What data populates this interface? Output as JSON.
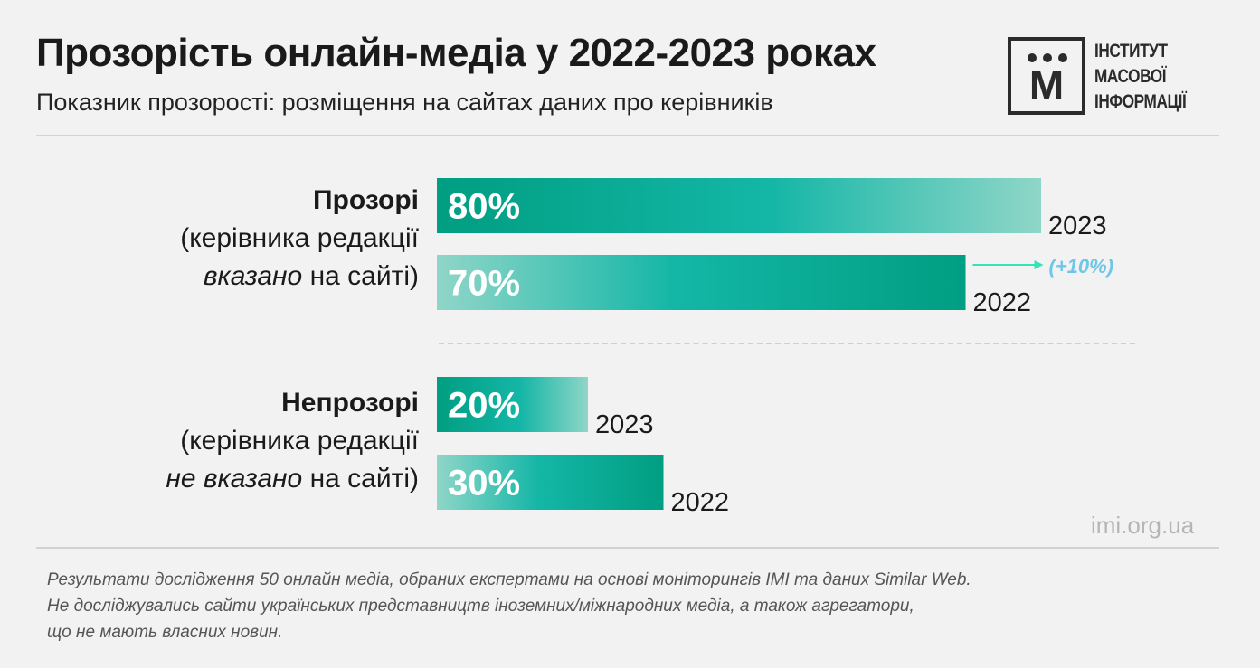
{
  "title": "Прозорість онлайн-медіа у 2022-2023 роках",
  "subtitle": "Показник прозорості: розміщення на сайтах даних про керівників",
  "logo": {
    "lines": [
      "ІНСТИТУТ",
      "МАСОВОЇ",
      "ІНФОРМАЦІЇ"
    ],
    "mark": "М",
    "color": "#2b2b2b"
  },
  "groups": [
    {
      "title": "Прозорі",
      "line1": "(керівника редакції",
      "em": "вказано",
      "rest": " на сайті)"
    },
    {
      "title": "Непрозорі",
      "line1": "(керівника редакції",
      "em": "не вказано",
      "rest": " на сайті)"
    }
  ],
  "site": "imi.org.ua",
  "footnote": [
    "Результати дослідження 50 онлайн медіа, обраних експертами на основі моніторингів IMI та даних Similar Web.",
    "Не досліджувались сайти українських представництв іноземних/міжнародних медіа, а також агрегатори,",
    "що не мають власних новин."
  ],
  "colors": {
    "teal_dark": "#009e82",
    "teal_mid": "#14b6a6",
    "teal_light": "#84d3c4",
    "arrow": "#34e3b6",
    "change_text": "#6ec7e6"
  },
  "chart_data": {
    "type": "bar",
    "orientation": "horizontal",
    "categories": [
      "Прозорі",
      "Непрозорі"
    ],
    "series": [
      {
        "name": "2023",
        "values": [
          80,
          20
        ],
        "labels": [
          "80%",
          "20%"
        ]
      },
      {
        "name": "2022",
        "values": [
          70,
          30
        ],
        "labels": [
          "70%",
          "30%"
        ]
      }
    ],
    "annotation": "(+10%)",
    "xlim": [
      0,
      100
    ]
  }
}
